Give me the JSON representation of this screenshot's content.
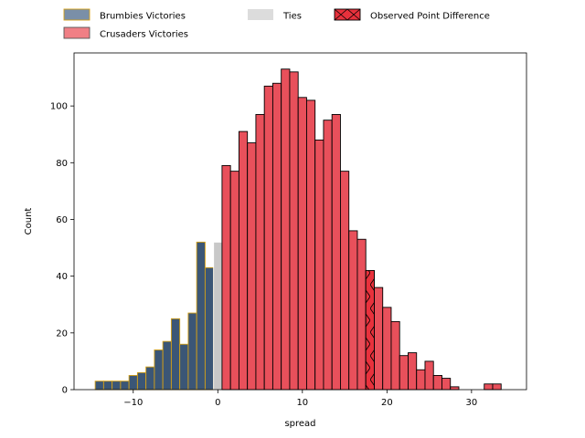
{
  "chart_data": {
    "type": "bar",
    "title": "",
    "xlabel": "spread",
    "ylabel": "Count",
    "xlim": [
      -17,
      36.5
    ],
    "ylim": [
      0,
      118.7
    ],
    "xticks": [
      -10,
      0,
      10,
      20,
      30
    ],
    "yticks": [
      0,
      20,
      40,
      60,
      80,
      100
    ],
    "grid": false,
    "legend": {
      "placement": "top",
      "entries": [
        {
          "key": "brumbies",
          "label": "Brumbies Victories"
        },
        {
          "key": "crusaders",
          "label": "Crusaders Victories"
        },
        {
          "key": "ties",
          "label": "Ties"
        },
        {
          "key": "observed",
          "label": "Observed Point Difference"
        }
      ]
    },
    "colors": {
      "brumbies_fill": "#3b5676",
      "brumbies_edge": "#d4a017",
      "crusaders_fill": "#e8505b",
      "ties_fill": "#c8c8c8",
      "observed_fill": "#e8313c",
      "legend_brumbies": "#7a8fa8",
      "legend_crusaders": "#f07f85",
      "legend_ties": "#dcdcdc"
    },
    "bin_width": 1,
    "series": [
      {
        "key": "brumbies",
        "bins": [
          {
            "x": -14,
            "count": 3
          },
          {
            "x": -13,
            "count": 3
          },
          {
            "x": -12,
            "count": 3
          },
          {
            "x": -11,
            "count": 3
          },
          {
            "x": -10,
            "count": 5
          },
          {
            "x": -9,
            "count": 6
          },
          {
            "x": -8,
            "count": 8
          },
          {
            "x": -7,
            "count": 14
          },
          {
            "x": -6,
            "count": 17
          },
          {
            "x": -5,
            "count": 25
          },
          {
            "x": -4,
            "count": 16
          },
          {
            "x": -3,
            "count": 27
          },
          {
            "x": -2,
            "count": 52
          },
          {
            "x": -1,
            "count": 43
          }
        ]
      },
      {
        "key": "ties",
        "bins": [
          {
            "x": 0,
            "count": 52
          }
        ]
      },
      {
        "key": "crusaders",
        "bins": [
          {
            "x": 1,
            "count": 79
          },
          {
            "x": 2,
            "count": 77
          },
          {
            "x": 3,
            "count": 91
          },
          {
            "x": 4,
            "count": 87
          },
          {
            "x": 5,
            "count": 97
          },
          {
            "x": 6,
            "count": 107
          },
          {
            "x": 7,
            "count": 108
          },
          {
            "x": 8,
            "count": 113
          },
          {
            "x": 9,
            "count": 112
          },
          {
            "x": 10,
            "count": 103
          },
          {
            "x": 11,
            "count": 102
          },
          {
            "x": 12,
            "count": 88
          },
          {
            "x": 13,
            "count": 95
          },
          {
            "x": 14,
            "count": 97
          },
          {
            "x": 15,
            "count": 77
          },
          {
            "x": 16,
            "count": 56
          },
          {
            "x": 17,
            "count": 53
          },
          {
            "x": 18,
            "count": 42
          },
          {
            "x": 19,
            "count": 36
          },
          {
            "x": 20,
            "count": 29
          },
          {
            "x": 21,
            "count": 24
          },
          {
            "x": 22,
            "count": 12
          },
          {
            "x": 23,
            "count": 13
          },
          {
            "x": 24,
            "count": 7
          },
          {
            "x": 25,
            "count": 10
          },
          {
            "x": 26,
            "count": 5
          },
          {
            "x": 27,
            "count": 4
          },
          {
            "x": 28,
            "count": 1
          },
          {
            "x": 32,
            "count": 2
          },
          {
            "x": 33,
            "count": 2
          }
        ]
      },
      {
        "key": "observed",
        "bins": [
          {
            "x": 18,
            "count": 42
          }
        ]
      }
    ]
  }
}
